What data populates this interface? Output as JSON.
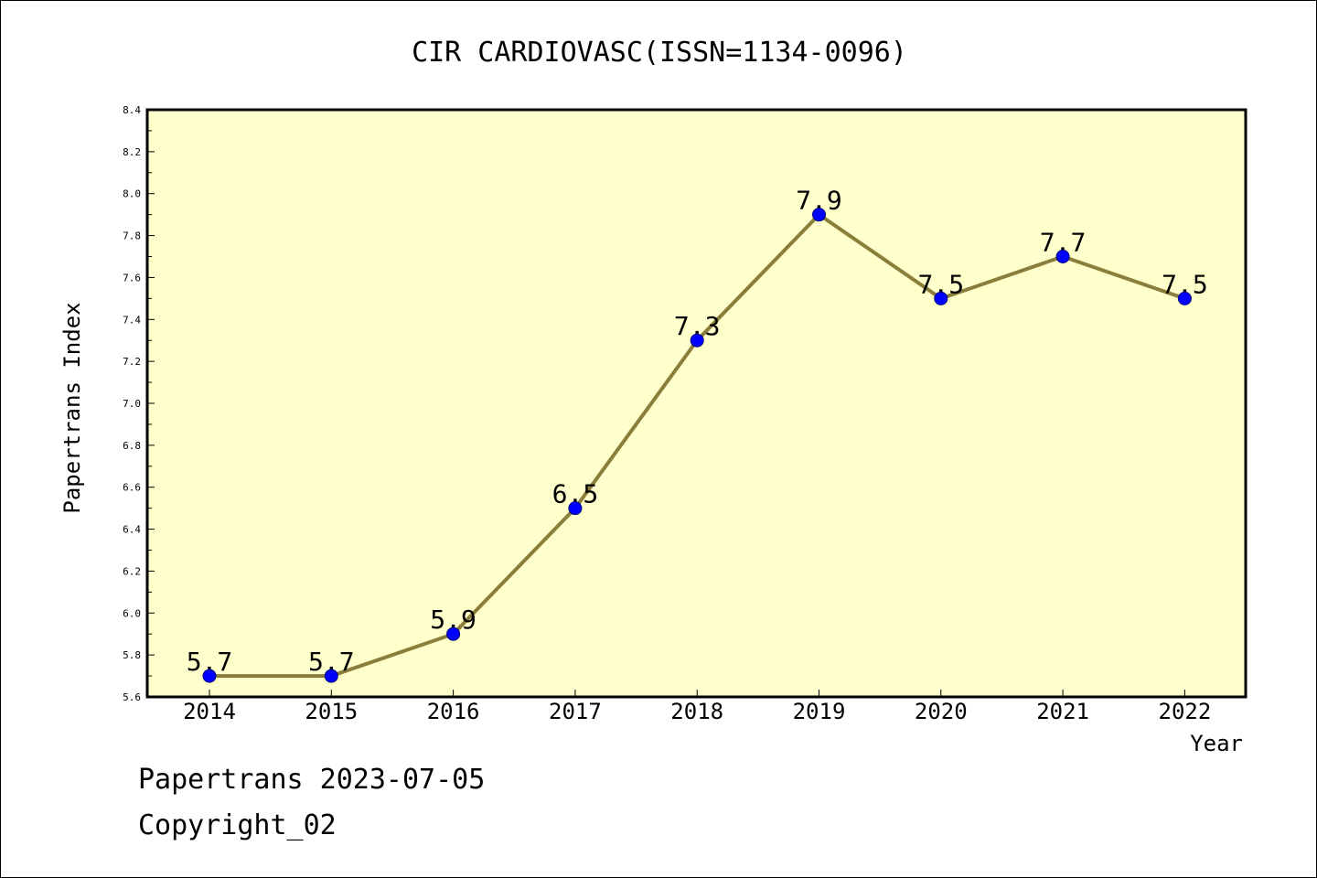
{
  "chart_data": {
    "type": "line",
    "title": "CIR CARDIOVASC(ISSN=1134-0096)",
    "xlabel": "Year",
    "ylabel": "Papertrans Index",
    "categories": [
      "2014",
      "2015",
      "2016",
      "2017",
      "2018",
      "2019",
      "2020",
      "2021",
      "2022"
    ],
    "series": [
      {
        "values": [
          5.7,
          5.7,
          5.9,
          6.5,
          7.3,
          7.9,
          7.5,
          7.7,
          7.5
        ]
      }
    ],
    "data_labels": [
      "5.7",
      "5.7",
      "5.9",
      "6.5",
      "7.3",
      "7.9",
      "7.5",
      "7.7",
      "7.5"
    ],
    "ylim": [
      5.6,
      8.4
    ],
    "yticks": [
      "5.6",
      "5.8",
      "6.0",
      "6.2",
      "6.4",
      "6.6",
      "6.8",
      "7.0",
      "7.2",
      "7.4",
      "7.6",
      "7.8",
      "8.0",
      "8.2",
      "8.4"
    ],
    "grid": false,
    "legend": "none",
    "colors": {
      "plot_background": "#ffffcc",
      "line": "#8b7d3a",
      "marker": "#0000ff",
      "marker_edge": "#000080"
    }
  },
  "footer": {
    "line1": "Papertrans 2023-07-05",
    "line2": "Copyright_02"
  }
}
